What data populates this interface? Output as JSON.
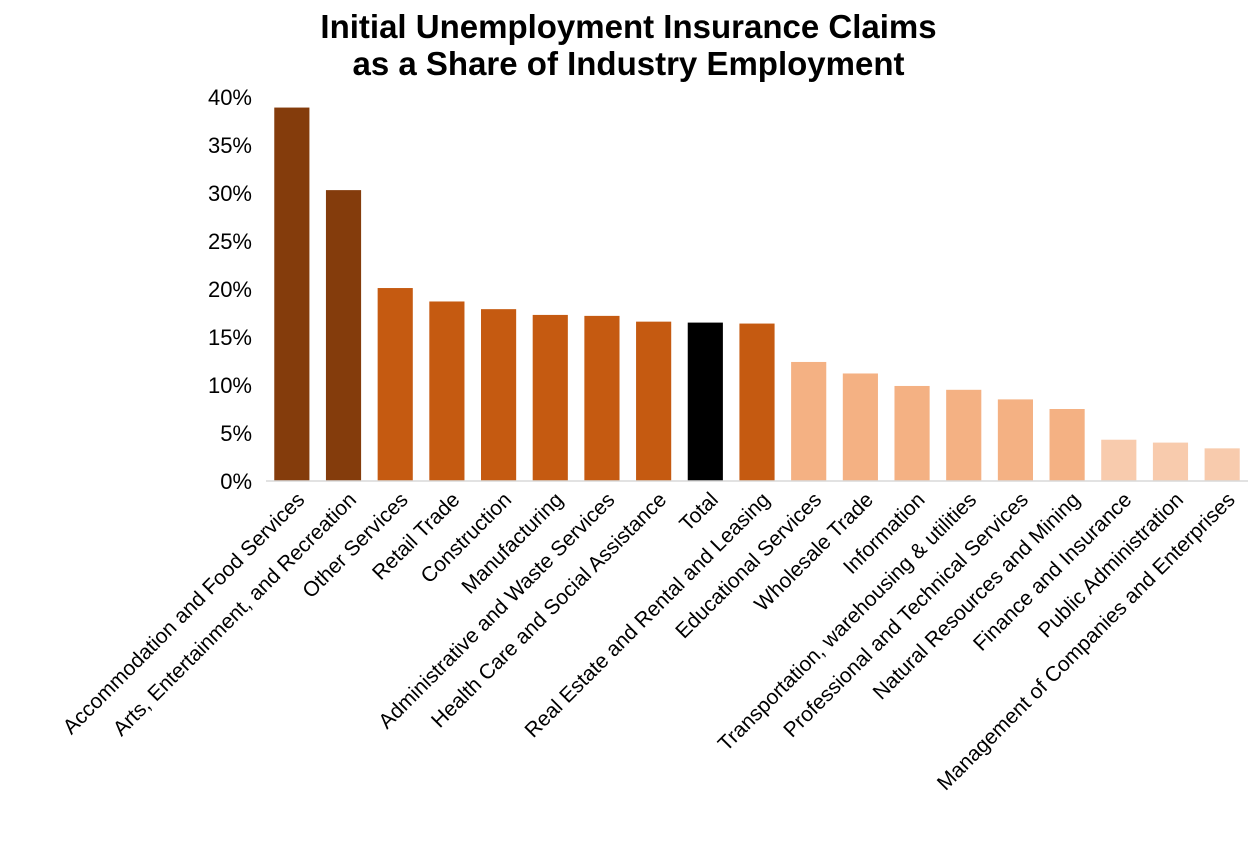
{
  "chart_data": {
    "type": "bar",
    "title_lines": [
      "Initial Unemployment Insurance Claims",
      "as a Share of Industry Employment"
    ],
    "xlabel": "",
    "ylabel": "",
    "ylim": [
      0,
      40
    ],
    "yticks": [
      "0%",
      "5%",
      "10%",
      "15%",
      "20%",
      "25%",
      "30%",
      "35%",
      "40%"
    ],
    "grid": false,
    "legend": "none",
    "categories": [
      "Accommodation and Food Services",
      "Arts, Entertainment, and Recreation",
      "Other Services",
      "Retail Trade",
      "Construction",
      "Manufacturing",
      "Administrative and Waste Services",
      "Health Care and Social Assistance",
      "Total",
      "Real Estate and Rental and Leasing",
      "Educational Services",
      "Wholesale Trade",
      "Information",
      "Transportation, warehousing & utilities",
      "Professional and Technical Services",
      "Natural Resources and Mining",
      "Finance and Insurance",
      "Public Administration",
      "Management of Companies and Enterprises"
    ],
    "values": [
      38.9,
      30.3,
      20.1,
      18.7,
      17.9,
      17.3,
      17.2,
      16.6,
      16.5,
      16.4,
      12.4,
      11.2,
      9.9,
      9.5,
      8.5,
      7.5,
      4.3,
      4.0,
      3.4
    ],
    "colors": [
      "#843c0c",
      "#843c0c",
      "#c55a11",
      "#c55a11",
      "#c55a11",
      "#c55a11",
      "#c55a11",
      "#c55a11",
      "#000000",
      "#c55a11",
      "#f4b183",
      "#f4b183",
      "#f4b183",
      "#f4b183",
      "#f4b183",
      "#f4b183",
      "#f8cbad",
      "#f8cbad",
      "#f8cbad"
    ]
  }
}
